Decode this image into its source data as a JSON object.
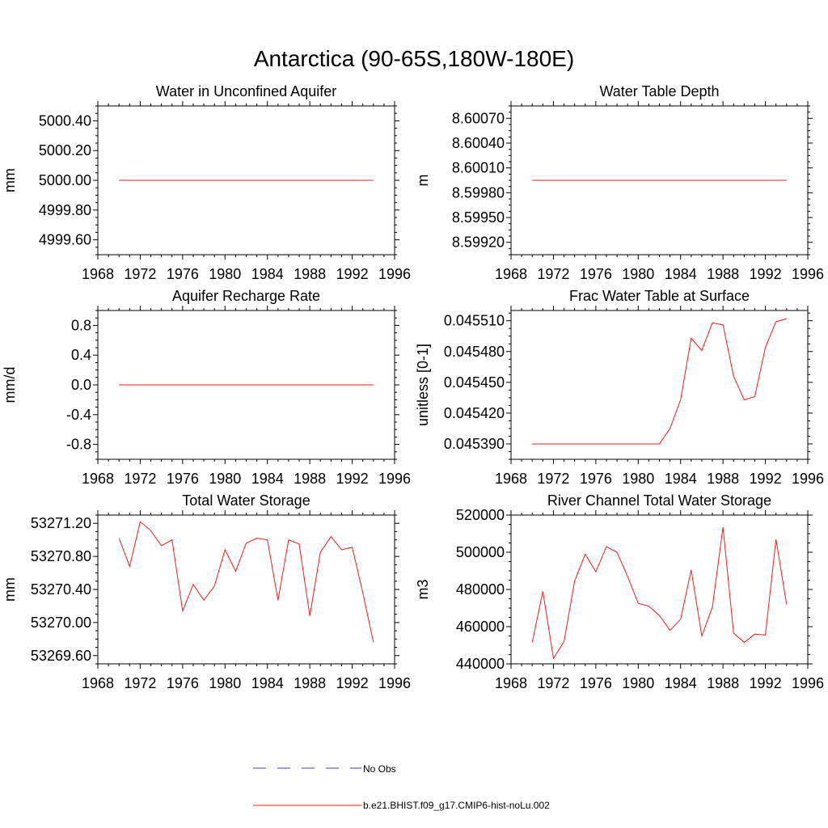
{
  "figure": {
    "title": "Antarctica (90-65S,180W-180E)"
  },
  "legend": {
    "entries": [
      {
        "label": "No Obs",
        "color": "#3b3bc8",
        "dash": "dashed"
      },
      {
        "label": "b.e21.BHIST.f09_g17.CMIP6-hist-noLu.002",
        "color": "#e8201e",
        "dash": "solid"
      }
    ]
  },
  "chart_data": [
    {
      "type": "line",
      "title": "Water in Unconfined Aquifer",
      "xlabel": "",
      "ylabel": "mm",
      "xlim": [
        1968,
        1996
      ],
      "ylim": [
        4999.5,
        5000.5
      ],
      "xticks": [
        1968,
        1972,
        1976,
        1980,
        1984,
        1988,
        1992,
        1996
      ],
      "yticks": [
        4999.6,
        4999.8,
        5000.0,
        5000.2,
        5000.4
      ],
      "yticklabels": [
        "4999.60",
        "4999.80",
        "5000.00",
        "5000.20",
        "5000.40"
      ],
      "series": [
        {
          "color": "#e8201e",
          "x": [
            1970,
            1971,
            1972,
            1973,
            1974,
            1975,
            1976,
            1977,
            1978,
            1979,
            1980,
            1981,
            1982,
            1983,
            1984,
            1985,
            1986,
            1987,
            1988,
            1989,
            1990,
            1991,
            1992,
            1993,
            1994
          ],
          "values": [
            5000,
            5000,
            5000,
            5000,
            5000,
            5000,
            5000,
            5000,
            5000,
            5000,
            5000,
            5000,
            5000,
            5000,
            5000,
            5000,
            5000,
            5000,
            5000,
            5000,
            5000,
            5000,
            5000,
            5000,
            5000
          ]
        }
      ]
    },
    {
      "type": "line",
      "title": "Water Table Depth",
      "xlabel": "",
      "ylabel": "m",
      "xlim": [
        1968,
        1996
      ],
      "ylim": [
        8.59905,
        8.60085
      ],
      "xticks": [
        1968,
        1972,
        1976,
        1980,
        1984,
        1988,
        1992,
        1996
      ],
      "yticks": [
        8.5992,
        8.5995,
        8.5998,
        8.6001,
        8.6004,
        8.6007
      ],
      "yticklabels": [
        "8.59920",
        "8.59950",
        "8.59980",
        "8.60010",
        "8.60040",
        "8.60070"
      ],
      "series": [
        {
          "color": "#e8201e",
          "x": [
            1970,
            1971,
            1972,
            1973,
            1974,
            1975,
            1976,
            1977,
            1978,
            1979,
            1980,
            1981,
            1982,
            1983,
            1984,
            1985,
            1986,
            1987,
            1988,
            1989,
            1990,
            1991,
            1992,
            1993,
            1994
          ],
          "values": [
            8.59995,
            8.59995,
            8.59995,
            8.59995,
            8.59995,
            8.59995,
            8.59995,
            8.59995,
            8.59995,
            8.59995,
            8.59995,
            8.59995,
            8.59995,
            8.59995,
            8.59995,
            8.59995,
            8.59995,
            8.59995,
            8.59995,
            8.59995,
            8.59995,
            8.59995,
            8.59995,
            8.59995,
            8.59995
          ]
        }
      ]
    },
    {
      "type": "line",
      "title": "Aquifer Recharge Rate",
      "xlabel": "",
      "ylabel": "mm/d",
      "xlim": [
        1968,
        1996
      ],
      "ylim": [
        -1.0,
        1.0
      ],
      "xticks": [
        1968,
        1972,
        1976,
        1980,
        1984,
        1988,
        1992,
        1996
      ],
      "yticks": [
        -0.8,
        -0.4,
        0.0,
        0.4,
        0.8
      ],
      "yticklabels": [
        "-0.8",
        "-0.4",
        "0.0",
        "0.4",
        "0.8"
      ],
      "series": [
        {
          "color": "#e8201e",
          "x": [
            1970,
            1971,
            1972,
            1973,
            1974,
            1975,
            1976,
            1977,
            1978,
            1979,
            1980,
            1981,
            1982,
            1983,
            1984,
            1985,
            1986,
            1987,
            1988,
            1989,
            1990,
            1991,
            1992,
            1993,
            1994
          ],
          "values": [
            0,
            0,
            0,
            0,
            0,
            0,
            0,
            0,
            0,
            0,
            0,
            0,
            0,
            0,
            0,
            0,
            0,
            0,
            0,
            0,
            0,
            0,
            0,
            0,
            0
          ]
        }
      ]
    },
    {
      "type": "line",
      "title": "Frac Water Table at Surface",
      "xlabel": "",
      "ylabel": "unitless [0-1]",
      "xlim": [
        1968,
        1996
      ],
      "ylim": [
        0.045375,
        0.04552
      ],
      "xticks": [
        1968,
        1972,
        1976,
        1980,
        1984,
        1988,
        1992,
        1996
      ],
      "yticks": [
        0.04539,
        0.04542,
        0.04545,
        0.04548,
        0.04551
      ],
      "yticklabels": [
        "0.045390",
        "0.045420",
        "0.045450",
        "0.045480",
        "0.045510"
      ],
      "series": [
        {
          "color": "#e8201e",
          "x": [
            1970,
            1971,
            1972,
            1973,
            1974,
            1975,
            1976,
            1977,
            1978,
            1979,
            1980,
            1981,
            1982,
            1983,
            1984,
            1985,
            1986,
            1987,
            1988,
            1989,
            1990,
            1991,
            1992,
            1993,
            1994
          ],
          "values": [
            0.04539,
            0.04539,
            0.04539,
            0.04539,
            0.04539,
            0.04539,
            0.04539,
            0.04539,
            0.04539,
            0.04539,
            0.04539,
            0.04539,
            0.04539,
            0.045405,
            0.045433,
            0.045493,
            0.045481,
            0.045508,
            0.045506,
            0.045456,
            0.045433,
            0.045436,
            0.045484,
            0.045509,
            0.045512
          ]
        }
      ]
    },
    {
      "type": "line",
      "title": "Total Water Storage",
      "xlabel": "",
      "ylabel": "mm",
      "xlim": [
        1968,
        1996
      ],
      "ylim": [
        53269.5,
        53271.3
      ],
      "xticks": [
        1968,
        1972,
        1976,
        1980,
        1984,
        1988,
        1992,
        1996
      ],
      "yticks": [
        53269.6,
        53270.0,
        53270.4,
        53270.8,
        53271.2
      ],
      "yticklabels": [
        "53269.60",
        "53270.00",
        "53270.40",
        "53270.80",
        "53271.20"
      ],
      "series": [
        {
          "color": "#e8201e",
          "x": [
            1970,
            1971,
            1972,
            1973,
            1974,
            1975,
            1976,
            1977,
            1978,
            1979,
            1980,
            1981,
            1982,
            1983,
            1984,
            1985,
            1986,
            1987,
            1988,
            1989,
            1990,
            1991,
            1992,
            1993,
            1994
          ],
          "values": [
            53271.02,
            53270.68,
            53271.22,
            53271.11,
            53270.93,
            53271.0,
            53270.14,
            53270.46,
            53270.27,
            53270.44,
            53270.88,
            53270.62,
            53270.96,
            53271.02,
            53271.0,
            53270.27,
            53271.0,
            53270.95,
            53270.08,
            53270.85,
            53271.04,
            53270.88,
            53270.91,
            53270.36,
            53269.76
          ]
        }
      ]
    },
    {
      "type": "line",
      "title": "River Channel Total Water Storage",
      "xlabel": "",
      "ylabel": "m3",
      "xlim": [
        1968,
        1996
      ],
      "ylim": [
        440000,
        520000
      ],
      "xticks": [
        1968,
        1972,
        1976,
        1980,
        1984,
        1988,
        1992,
        1996
      ],
      "yticks": [
        440000,
        460000,
        480000,
        500000,
        520000
      ],
      "yticklabels": [
        "440000",
        "460000",
        "480000",
        "500000",
        "520000"
      ],
      "series": [
        {
          "color": "#e8201e",
          "x": [
            1970,
            1971,
            1972,
            1973,
            1974,
            1975,
            1976,
            1977,
            1978,
            1979,
            1980,
            1981,
            1982,
            1983,
            1984,
            1985,
            1986,
            1987,
            1988,
            1989,
            1990,
            1991,
            1992,
            1993,
            1994
          ],
          "values": [
            451500,
            479000,
            443000,
            452000,
            484500,
            499000,
            489500,
            503000,
            500000,
            487000,
            472500,
            471000,
            466000,
            458000,
            464000,
            490500,
            455000,
            470500,
            513500,
            456500,
            451500,
            456000,
            455500,
            507000,
            472000
          ]
        }
      ]
    }
  ]
}
